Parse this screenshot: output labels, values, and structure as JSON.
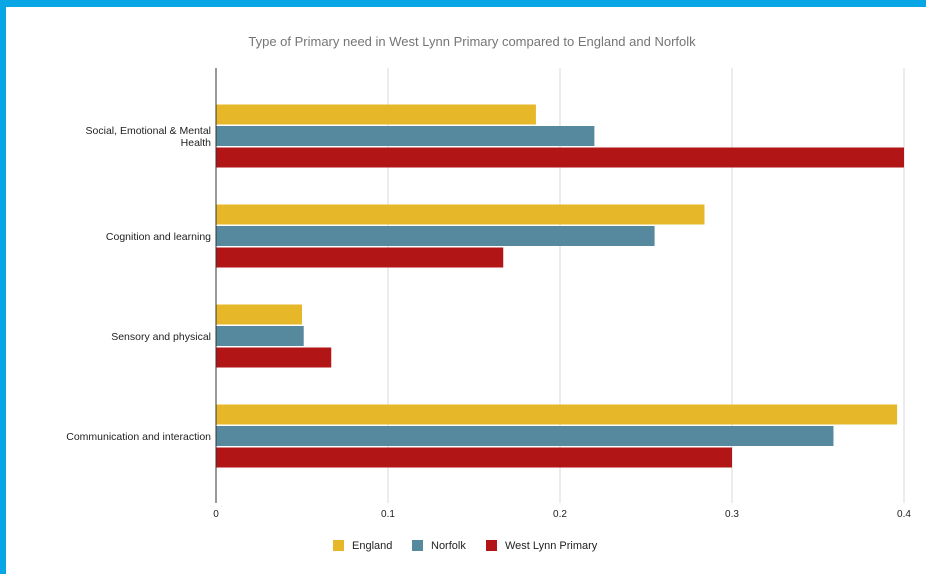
{
  "chart_data": {
    "type": "bar",
    "orientation": "horizontal",
    "title": "Type of Primary need in West Lynn Primary compared to England and Norfolk",
    "xlabel": "",
    "ylabel": "",
    "categories": [
      [
        "Social, Emotional & Mental",
        "Health"
      ],
      [
        "Cognition and learning"
      ],
      [
        "Sensory and physical"
      ],
      [
        "Communication and interaction"
      ]
    ],
    "series": [
      {
        "name": "England",
        "color": "#e6b729",
        "values": [
          0.186,
          0.284,
          0.05,
          0.396
        ]
      },
      {
        "name": "Norfolk",
        "color": "#56899e",
        "values": [
          0.22,
          0.255,
          0.051,
          0.359
        ]
      },
      {
        "name": "West Lynn Primary",
        "color": "#b11515",
        "values": [
          0.4,
          0.167,
          0.067,
          0.3
        ]
      }
    ],
    "xlim": [
      0,
      0.4
    ],
    "xticks": [
      "0",
      "0.1",
      "0.2",
      "0.3",
      "0.4"
    ],
    "grid": true,
    "legend_position": "bottom"
  },
  "colors": {
    "border": "#08a6e4",
    "background": "#ffffff",
    "gridline": "#d9d9d9"
  }
}
